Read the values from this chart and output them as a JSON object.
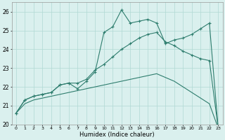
{
  "xlabel": "Humidex (Indice chaleur)",
  "x": [
    0,
    1,
    2,
    3,
    4,
    5,
    6,
    7,
    8,
    9,
    10,
    11,
    12,
    13,
    14,
    15,
    16,
    17,
    18,
    19,
    20,
    21,
    22,
    23
  ],
  "line1": [
    20.6,
    21.3,
    21.5,
    21.6,
    21.7,
    22.1,
    22.2,
    21.9,
    22.3,
    22.8,
    24.9,
    25.2,
    26.1,
    25.4,
    25.5,
    25.6,
    25.4,
    24.3,
    24.5,
    24.6,
    24.8,
    25.1,
    25.4,
    19.8
  ],
  "line2": [
    20.6,
    21.3,
    21.5,
    21.6,
    21.7,
    22.1,
    22.2,
    22.2,
    22.4,
    22.9,
    23.2,
    23.6,
    24.0,
    24.3,
    24.6,
    24.8,
    24.9,
    24.4,
    24.2,
    23.9,
    23.7,
    23.5,
    23.4,
    19.8
  ],
  "line3": [
    20.6,
    21.1,
    21.3,
    21.4,
    21.5,
    21.6,
    21.7,
    21.8,
    21.9,
    22.0,
    22.1,
    22.2,
    22.3,
    22.4,
    22.5,
    22.6,
    22.7,
    22.5,
    22.3,
    22.0,
    21.7,
    21.4,
    21.1,
    19.8
  ],
  "ylim": [
    20,
    26.5
  ],
  "yticks": [
    20,
    21,
    22,
    23,
    24,
    25,
    26
  ],
  "color": "#2e7d6e",
  "bg_color": "#daf0ee",
  "grid_color": "#b0d8d4",
  "lw": 0.8
}
